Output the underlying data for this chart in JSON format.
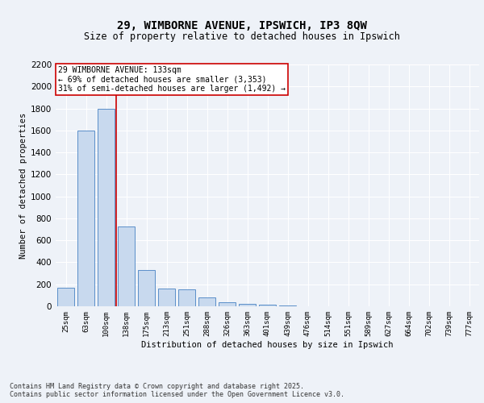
{
  "title_line1": "29, WIMBORNE AVENUE, IPSWICH, IP3 8QW",
  "title_line2": "Size of property relative to detached houses in Ipswich",
  "xlabel": "Distribution of detached houses by size in Ipswich",
  "ylabel": "Number of detached properties",
  "categories": [
    "25sqm",
    "63sqm",
    "100sqm",
    "138sqm",
    "175sqm",
    "213sqm",
    "251sqm",
    "288sqm",
    "326sqm",
    "363sqm",
    "401sqm",
    "439sqm",
    "476sqm",
    "514sqm",
    "551sqm",
    "589sqm",
    "627sqm",
    "664sqm",
    "702sqm",
    "739sqm",
    "777sqm"
  ],
  "values": [
    170,
    1600,
    1800,
    725,
    330,
    165,
    155,
    80,
    40,
    25,
    18,
    5,
    3,
    0,
    0,
    0,
    0,
    0,
    0,
    0,
    0
  ],
  "bar_color": "#c8d9ee",
  "bar_edge_color": "#5b8fc9",
  "vline_x": 2.5,
  "annotation_line1": "29 WIMBORNE AVENUE: 133sqm",
  "annotation_line2": "← 69% of detached houses are smaller (3,353)",
  "annotation_line3": "31% of semi-detached houses are larger (1,492) →",
  "annotation_box_facecolor": "#ffffff",
  "annotation_box_edgecolor": "#cc0000",
  "vline_color": "#cc0000",
  "ylim": [
    0,
    2200
  ],
  "yticks": [
    0,
    200,
    400,
    600,
    800,
    1000,
    1200,
    1400,
    1600,
    1800,
    2000,
    2200
  ],
  "background_color": "#eef2f8",
  "grid_color": "#ffffff",
  "footer_line1": "Contains HM Land Registry data © Crown copyright and database right 2025.",
  "footer_line2": "Contains public sector information licensed under the Open Government Licence v3.0."
}
